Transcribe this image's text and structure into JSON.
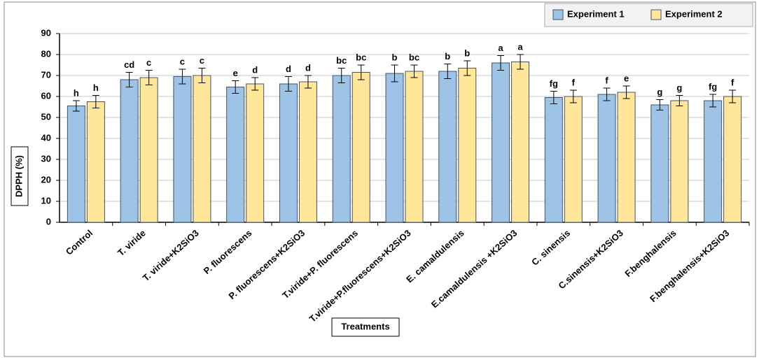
{
  "chart_data": {
    "type": "bar",
    "x_label": "Treatments",
    "y_label": "DPPH (%)",
    "categories": [
      "Control",
      "T. viride",
      "T. viride+K2SiO3",
      "P. fluorescens",
      "P. fluorescens+K2SiO3",
      "T.viride+P. fluorescens",
      "T.viride+P.fluorescens+K2SiO3",
      "E. camaldulensis",
      "E.camaldulensis +K2SiO3",
      "C. sinensis",
      "C.sinensis+K2SiO3",
      "F.benghalensis",
      "F.benghalensis+K2SiO3"
    ],
    "series": [
      {
        "name": "Experiment 1",
        "color": "#9dc3e6",
        "values": [
          55.5,
          68,
          69.5,
          64.5,
          66,
          70,
          71,
          72,
          76,
          59.5,
          61,
          56,
          58
        ],
        "errors": [
          2.5,
          3.5,
          3.5,
          3,
          3.5,
          3.5,
          4,
          3.5,
          3.5,
          3,
          3,
          2.5,
          3
        ],
        "letters": [
          "h",
          "cd",
          "c",
          "e",
          "d",
          "bc",
          "b",
          "b",
          "a",
          "fg",
          "f",
          "g",
          "fg"
        ]
      },
      {
        "name": "Experiment 2",
        "color": "#ffe699",
        "values": [
          57.5,
          69,
          70,
          66,
          67,
          71.5,
          72,
          73.5,
          76.5,
          60,
          62,
          58,
          60
        ],
        "errors": [
          3,
          3.5,
          3.5,
          3,
          3,
          3.5,
          3,
          3.5,
          3.5,
          3,
          3,
          2.5,
          3
        ],
        "letters": [
          "h",
          "c",
          "c",
          "d",
          "d",
          "bc",
          "bc",
          "b",
          "a",
          "f",
          "e",
          "g",
          "f"
        ]
      }
    ],
    "ylim": [
      0,
      90
    ],
    "yticks": [
      0,
      10,
      20,
      30,
      40,
      50,
      60,
      70,
      80,
      90
    ],
    "grid": true,
    "legend": "top-right"
  }
}
